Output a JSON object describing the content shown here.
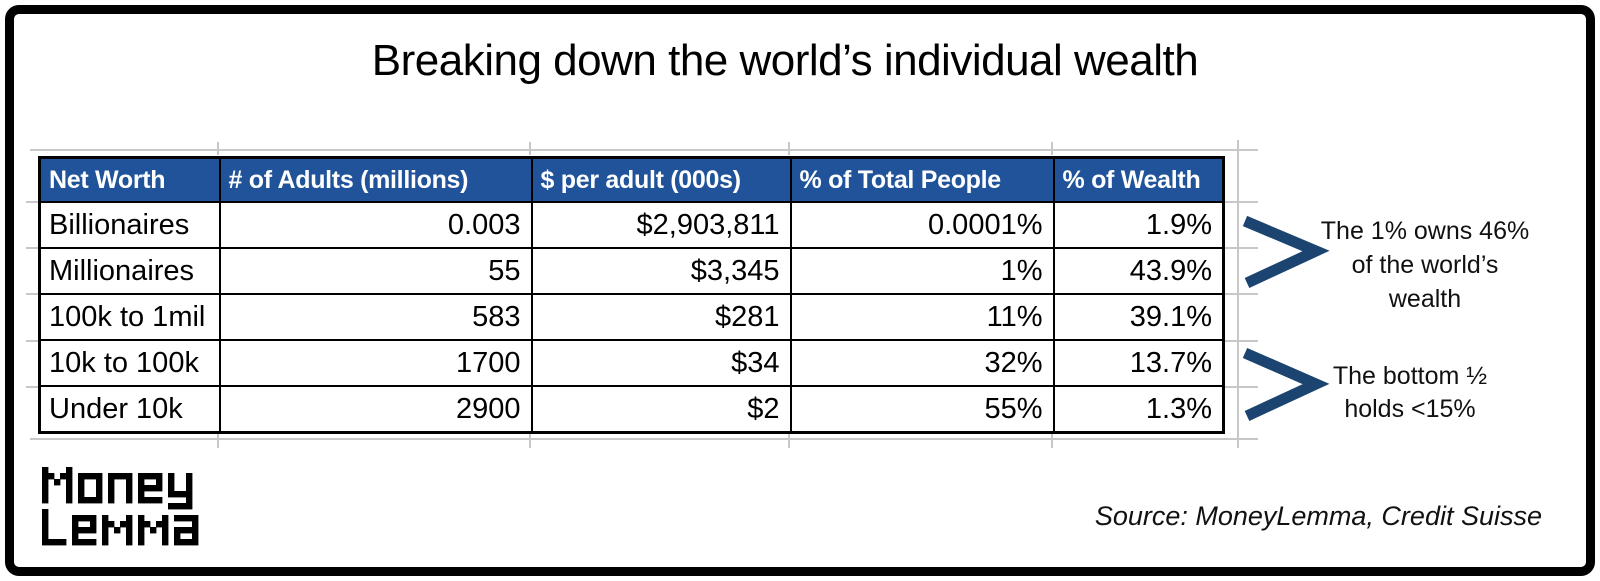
{
  "title": "Breaking down the world’s individual wealth",
  "table": {
    "columns": [
      "Net Worth",
      "# of Adults (millions)",
      "$ per adult (000s)",
      "% of Total People",
      "% of Wealth"
    ],
    "rows": [
      [
        "Billionaires",
        "0.003",
        "$2,903,811",
        "0.0001%",
        "1.9%"
      ],
      [
        "Millionaires",
        "55",
        "$3,345",
        "1%",
        "43.9%"
      ],
      [
        "100k to 1mil",
        "583",
        "$281",
        "11%",
        "39.1%"
      ],
      [
        "10k to 100k",
        "1700",
        "$34",
        "32%",
        "13.7%"
      ],
      [
        "Under 10k",
        "2900",
        "$2",
        "55%",
        "1.3%"
      ]
    ]
  },
  "annotations": [
    {
      "lines": [
        "The 1% owns 46%",
        "of the world’s",
        "wealth"
      ]
    },
    {
      "lines": [
        "The bottom ½",
        "holds <15%"
      ]
    }
  ],
  "logo": {
    "line1": "Money",
    "line2": "Lemma"
  },
  "source": "Source: MoneyLemma, Credit Suisse",
  "colors": {
    "header_bg": "#20539A",
    "header_text": "#ffffff",
    "chevron": "#1C4470",
    "gridline": "#c8c8c8"
  },
  "chart_data": {
    "type": "table",
    "title": "Breaking down the world’s individual wealth",
    "columns": [
      "Net Worth",
      "# of Adults (millions)",
      "$ per adult (000s)",
      "% of Total People",
      "% of Wealth"
    ],
    "rows": [
      [
        "Billionaires",
        0.003,
        2903811,
        "0.0001%",
        "1.9%"
      ],
      [
        "Millionaires",
        55,
        3345,
        "1%",
        "43.9%"
      ],
      [
        "100k to 1mil",
        583,
        281,
        "11%",
        "39.1%"
      ],
      [
        "10k to 100k",
        1700,
        34,
        "32%",
        "13.7%"
      ],
      [
        "Under 10k",
        2900,
        2,
        "55%",
        "1.3%"
      ]
    ],
    "annotations": [
      "The 1% owns 46% of the world’s wealth",
      "The bottom ½ holds <15%"
    ]
  }
}
